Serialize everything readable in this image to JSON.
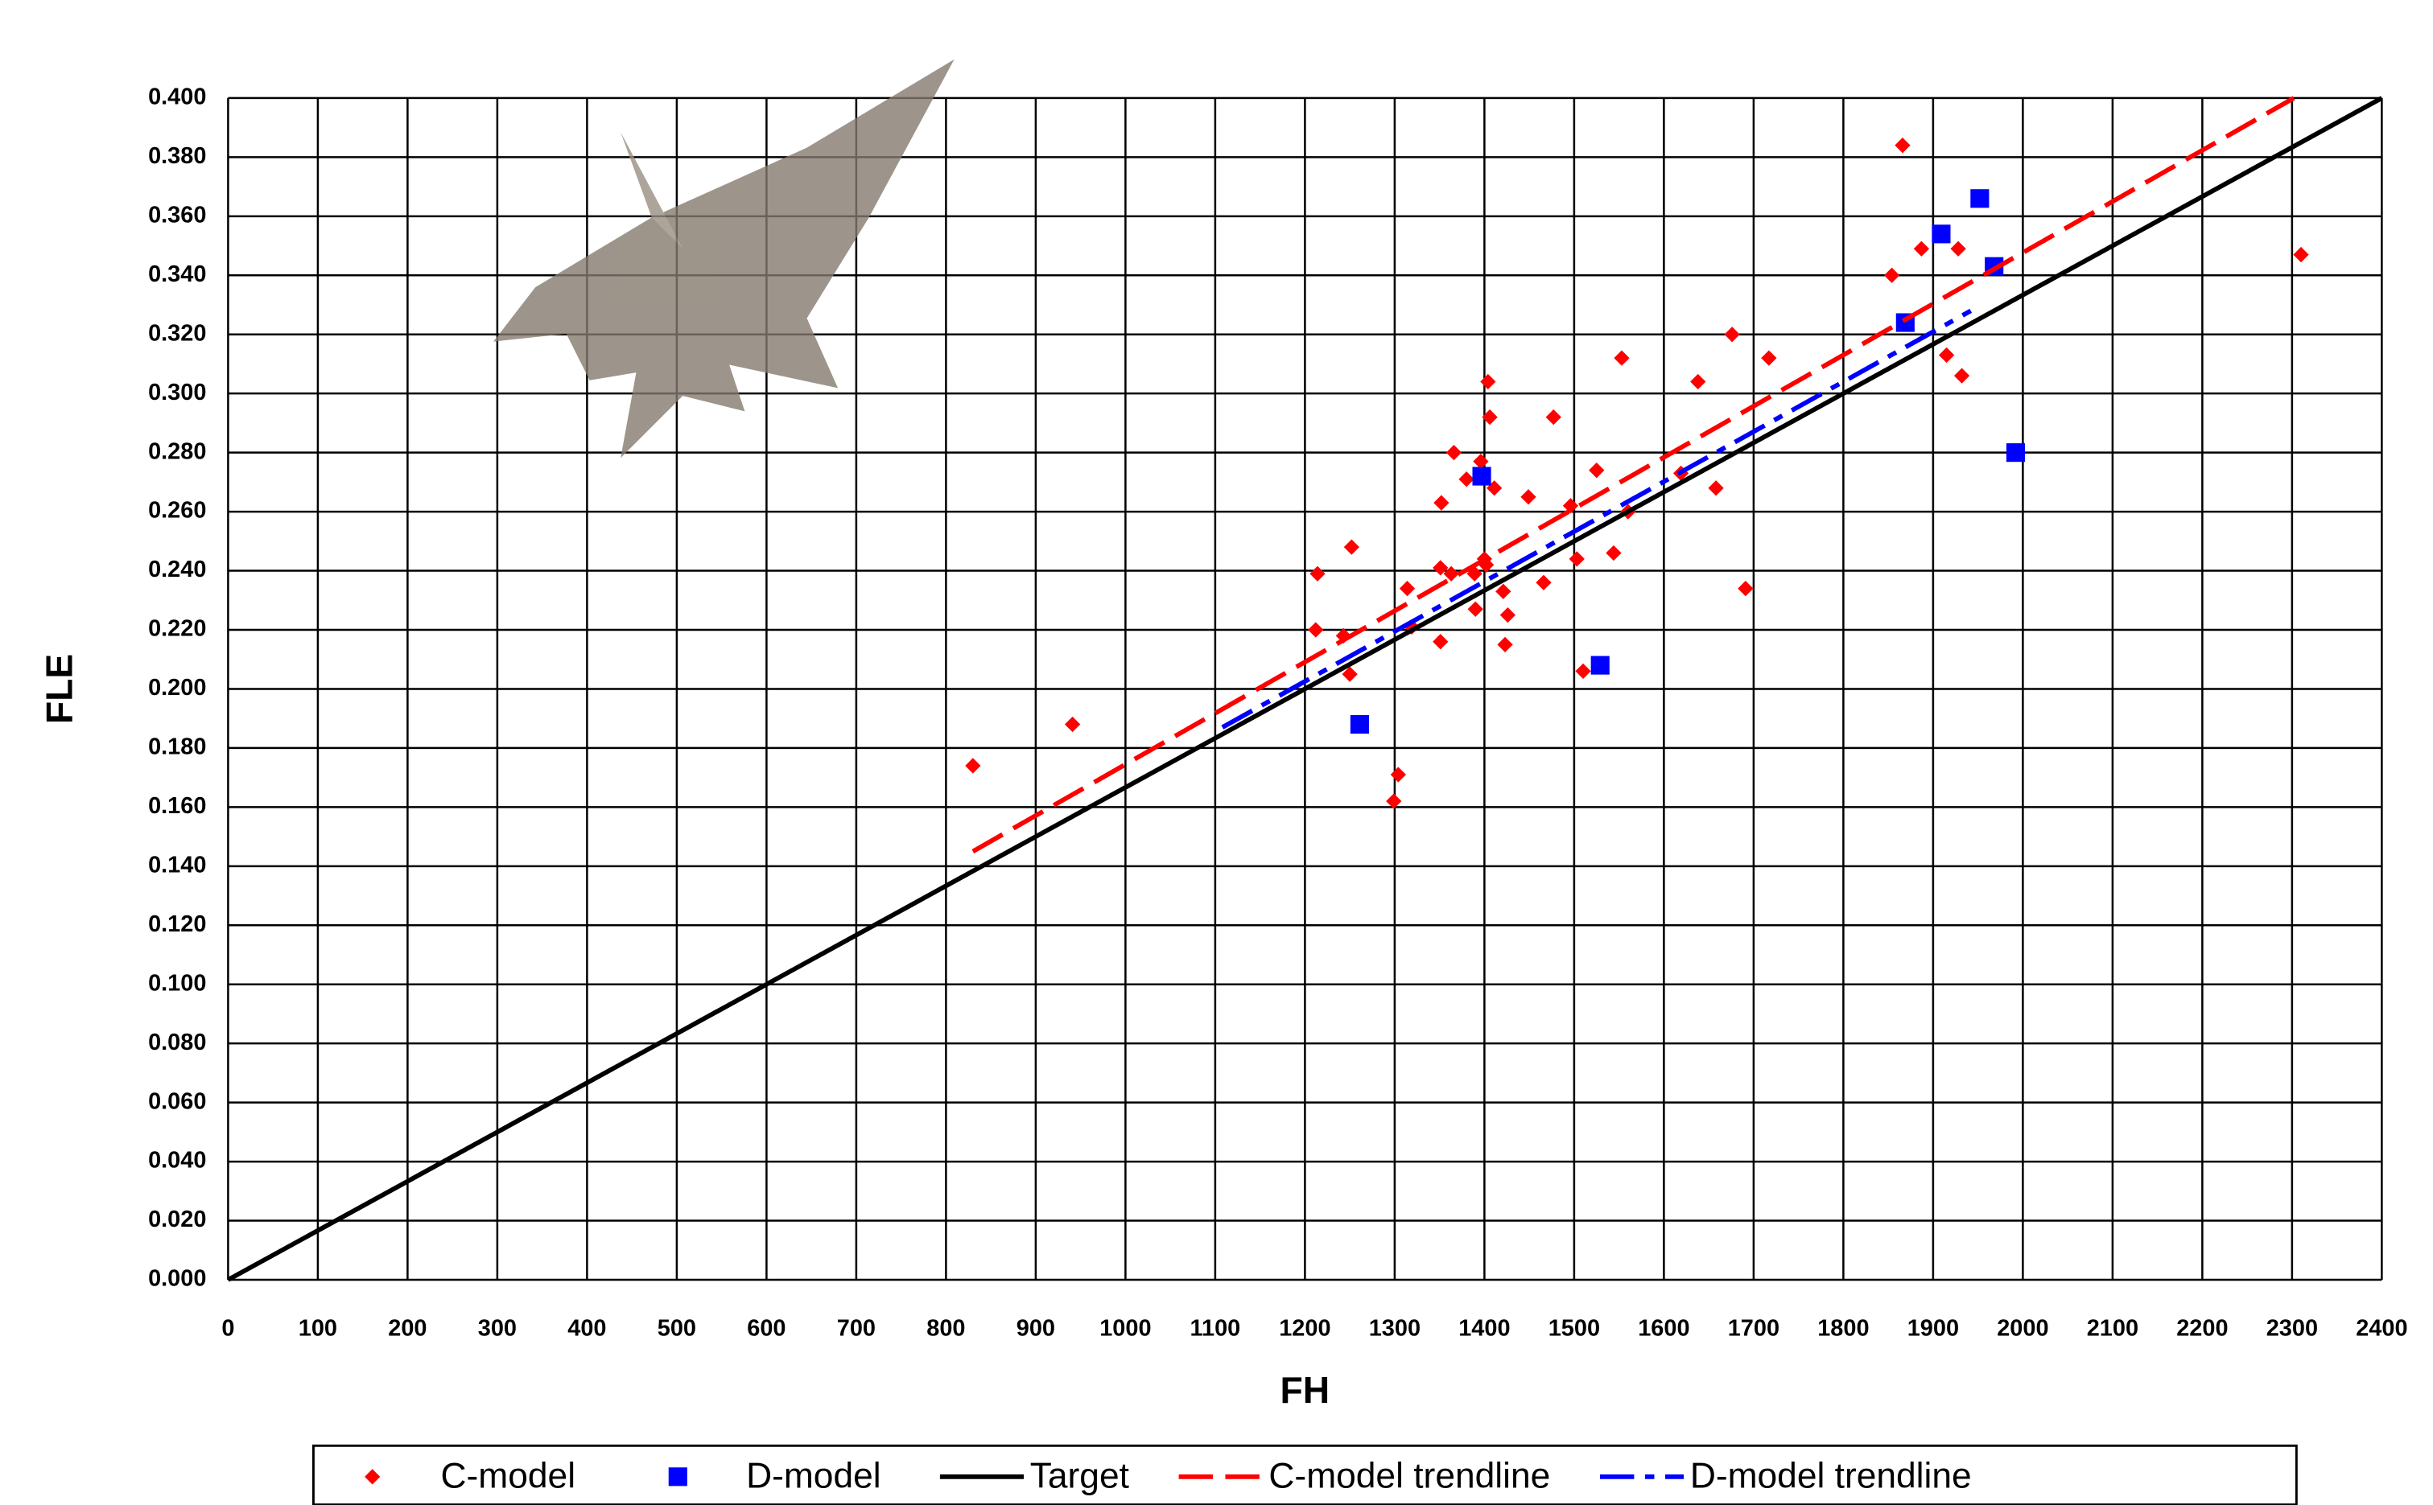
{
  "chart_data": {
    "type": "scatter",
    "x_label": "FH",
    "y_label": "FLE",
    "xlim": [
      0,
      2400
    ],
    "ylim": [
      0,
      0.4
    ],
    "xticks": [
      0,
      100,
      200,
      300,
      400,
      500,
      600,
      700,
      800,
      900,
      1000,
      1100,
      1200,
      1300,
      1400,
      1500,
      1600,
      1700,
      1800,
      1900,
      2000,
      2100,
      2200,
      2300,
      2400
    ],
    "yticks": [
      {
        "value": 0,
        "label": "0.000"
      },
      {
        "value": 0.02,
        "label": "0.020"
      },
      {
        "value": 0.04,
        "label": "0.040"
      },
      {
        "value": 0.06,
        "label": "0.060"
      },
      {
        "value": 0.08,
        "label": "0.080"
      },
      {
        "value": 0.1,
        "label": "0.100"
      },
      {
        "value": 0.12,
        "label": "0.120"
      },
      {
        "value": 0.14,
        "label": "0.140"
      },
      {
        "value": 0.16,
        "label": "0.160"
      },
      {
        "value": 0.18,
        "label": "0.180"
      },
      {
        "value": 0.2,
        "label": "0.200"
      },
      {
        "value": 0.22,
        "label": "0.220"
      },
      {
        "value": 0.24,
        "label": "0.240"
      },
      {
        "value": 0.26,
        "label": "0.260"
      },
      {
        "value": 0.28,
        "label": "0.280"
      },
      {
        "value": 0.3,
        "label": "0.300"
      },
      {
        "value": 0.32,
        "label": "0.320"
      },
      {
        "value": 0.34,
        "label": "0.340"
      },
      {
        "value": 0.36,
        "label": "0.360"
      },
      {
        "value": 0.38,
        "label": "0.380"
      },
      {
        "value": 0.4,
        "label": "0.400"
      }
    ],
    "grid": true,
    "legend": "bottom",
    "series": [
      {
        "name": "C-model",
        "color": "#ff0000",
        "marker": "diamond",
        "x": [
          830,
          941,
          1214,
          1212,
          1252,
          1250,
          1243,
          1299,
          1304,
          1314,
          1319,
          1351,
          1352,
          1351,
          1363,
          1366,
          1380,
          1390,
          1389,
          1396,
          1402,
          1404,
          1406,
          1411,
          1421,
          1426,
          1423,
          1400,
          1449,
          1466,
          1477,
          1496,
          1503,
          1510,
          1525,
          1544,
          1553,
          1560,
          1619,
          1638,
          1658,
          1676,
          1691,
          1717,
          1854,
          1866,
          1887,
          1915,
          1928,
          1932,
          2310
        ],
        "values": [
          0.174,
          0.188,
          0.239,
          0.22,
          0.248,
          0.205,
          0.218,
          0.162,
          0.171,
          0.234,
          0.221,
          0.216,
          0.263,
          0.241,
          0.239,
          0.28,
          0.271,
          0.227,
          0.239,
          0.277,
          0.242,
          0.304,
          0.292,
          0.268,
          0.233,
          0.225,
          0.215,
          0.244,
          0.265,
          0.236,
          0.292,
          0.262,
          0.244,
          0.206,
          0.274,
          0.246,
          0.312,
          0.26,
          0.273,
          0.304,
          0.268,
          0.32,
          0.234,
          0.312,
          0.34,
          0.384,
          0.349,
          0.313,
          0.349,
          0.306,
          0.347
        ]
      },
      {
        "name": "D-model",
        "color": "#0000ff",
        "marker": "square",
        "x": [
          1261,
          1397,
          1529,
          1869,
          1909,
          1952,
          1968,
          1992
        ],
        "values": [
          0.188,
          0.272,
          0.208,
          0.324,
          0.354,
          0.366,
          0.343,
          0.28
        ]
      },
      {
        "name": "Target",
        "color": "#000000",
        "line_style": "solid",
        "x": [
          0,
          2400
        ],
        "values": [
          0,
          0.4
        ]
      },
      {
        "name": "C-model trendline",
        "color": "#ff0000",
        "line_style": "dashed",
        "x": [
          830,
          2302
        ],
        "values": [
          0.145,
          0.4
        ]
      },
      {
        "name": "D-model trendline",
        "color": "#0000ff",
        "line_style": "dashdot",
        "x": [
          1108,
          1942
        ],
        "values": [
          0.187,
          0.328
        ]
      }
    ]
  }
}
